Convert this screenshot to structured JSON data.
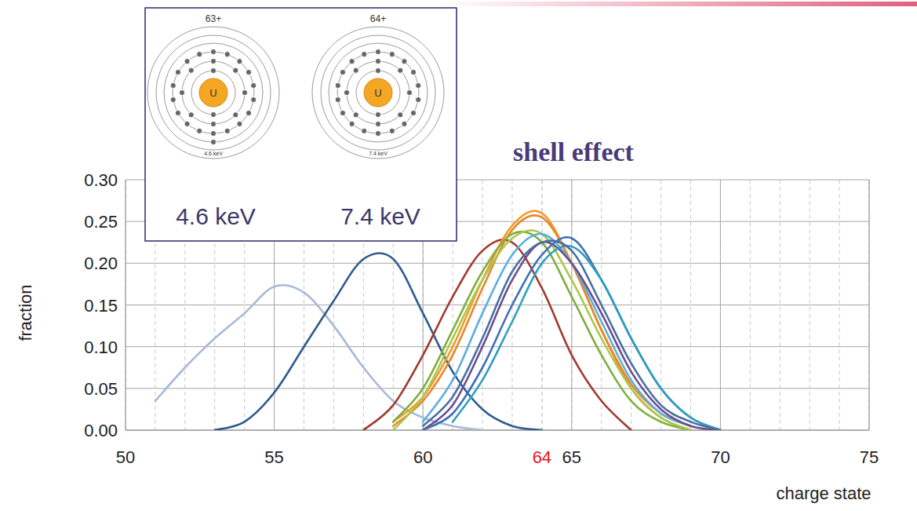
{
  "chart_data": {
    "type": "line",
    "title": "shell effect",
    "x_label": "charge state",
    "y_label": "fraction",
    "xlim": [
      50,
      75
    ],
    "ylim": [
      0,
      0.3
    ],
    "xticks": [
      50,
      55,
      60,
      {
        "value": 64,
        "label": "64",
        "color": "#e8141b"
      },
      65,
      70,
      75
    ],
    "yticks": [
      {
        "value": 0,
        "label": "0.00"
      },
      {
        "value": 0.05,
        "label": "0.05"
      },
      {
        "value": 0.1,
        "label": "0.10"
      },
      {
        "value": 0.15,
        "label": "0.15"
      },
      {
        "value": 0.2,
        "label": "0.20"
      },
      {
        "value": 0.25,
        "label": "0.25"
      },
      {
        "value": 0.3,
        "label": "0.30"
      }
    ],
    "grid": true,
    "series": [
      {
        "color": "#a7b9d6",
        "x": [
          51,
          52,
          53,
          54,
          55,
          56,
          57,
          58,
          59,
          60,
          61,
          62
        ],
        "values": [
          0.035,
          0.075,
          0.11,
          0.14,
          0.172,
          0.165,
          0.125,
          0.075,
          0.035,
          0.015,
          0.005,
          0.0
        ]
      },
      {
        "color": "#2f5b8f",
        "x": [
          53,
          54,
          55,
          56,
          57,
          58,
          59,
          60,
          61,
          62,
          63,
          64
        ],
        "values": [
          0.0,
          0.01,
          0.045,
          0.1,
          0.155,
          0.205,
          0.205,
          0.14,
          0.07,
          0.025,
          0.005,
          0.0
        ]
      },
      {
        "color": "#a03a2e",
        "x": [
          58,
          59,
          60,
          61,
          62,
          63,
          64,
          65,
          66,
          67
        ],
        "values": [
          0.0,
          0.03,
          0.09,
          0.16,
          0.215,
          0.225,
          0.17,
          0.09,
          0.035,
          0.0
        ]
      },
      {
        "color": "#f39a2b",
        "x": [
          59,
          60,
          61,
          62,
          63,
          64,
          65,
          66,
          67,
          68,
          69
        ],
        "values": [
          0.01,
          0.04,
          0.1,
          0.18,
          0.245,
          0.26,
          0.2,
          0.12,
          0.05,
          0.015,
          0.0
        ]
      },
      {
        "color": "#e8862a",
        "x": [
          59,
          60,
          61,
          62,
          63,
          64,
          65,
          66,
          67,
          68,
          69
        ],
        "values": [
          0.005,
          0.035,
          0.09,
          0.17,
          0.24,
          0.255,
          0.2,
          0.12,
          0.055,
          0.02,
          0.005
        ]
      },
      {
        "color": "#7faf3c",
        "x": [
          59,
          60,
          61,
          62,
          63,
          64,
          65,
          66,
          67,
          68,
          69
        ],
        "values": [
          0.01,
          0.05,
          0.12,
          0.19,
          0.235,
          0.225,
          0.16,
          0.09,
          0.035,
          0.01,
          0.0
        ]
      },
      {
        "color": "#a9c84a",
        "x": [
          59,
          60,
          61,
          62,
          63,
          64,
          65,
          66,
          67,
          68,
          69
        ],
        "values": [
          0.0,
          0.04,
          0.11,
          0.18,
          0.23,
          0.235,
          0.18,
          0.11,
          0.05,
          0.015,
          0.0
        ]
      },
      {
        "color": "#5aaee0",
        "x": [
          60,
          61,
          62,
          63,
          64,
          65,
          66,
          67,
          68,
          69
        ],
        "values": [
          0.01,
          0.06,
          0.14,
          0.21,
          0.235,
          0.2,
          0.13,
          0.06,
          0.02,
          0.005
        ]
      },
      {
        "color": "#6b4f8c",
        "x": [
          60,
          61,
          62,
          63,
          64,
          65,
          66,
          67,
          68,
          69,
          70
        ],
        "values": [
          0.0,
          0.03,
          0.1,
          0.18,
          0.225,
          0.2,
          0.14,
          0.07,
          0.025,
          0.005,
          0.0
        ]
      },
      {
        "color": "#3f6fb8",
        "x": [
          60,
          61,
          62,
          63,
          64,
          65,
          66,
          67,
          68,
          69,
          70
        ],
        "values": [
          0.0,
          0.02,
          0.075,
          0.15,
          0.21,
          0.23,
          0.18,
          0.11,
          0.05,
          0.015,
          0.0
        ]
      },
      {
        "color": "#2e9fc0",
        "x": [
          61,
          62,
          63,
          64,
          65,
          66,
          67,
          68,
          69,
          70
        ],
        "values": [
          0.01,
          0.06,
          0.13,
          0.2,
          0.22,
          0.18,
          0.11,
          0.05,
          0.015,
          0.0
        ]
      },
      {
        "color": "#4a6fa0",
        "x": [
          60,
          61,
          62,
          63,
          64,
          65,
          66,
          67,
          68,
          69,
          70
        ],
        "values": [
          0.005,
          0.04,
          0.11,
          0.19,
          0.225,
          0.215,
          0.15,
          0.08,
          0.03,
          0.01,
          0.0
        ]
      }
    ]
  },
  "inset": {
    "diagrams": [
      {
        "label": "63+",
        "nucleus": "U",
        "electrons": [
          2,
          8,
          18,
          1
        ],
        "shell_label": "4.6 keV",
        "energy": "4.6 keV"
      },
      {
        "label": "64+",
        "nucleus": "U",
        "electrons": [
          2,
          8,
          18
        ],
        "shell_label": "7.4 keV",
        "energy": "7.4 keV"
      }
    ]
  }
}
